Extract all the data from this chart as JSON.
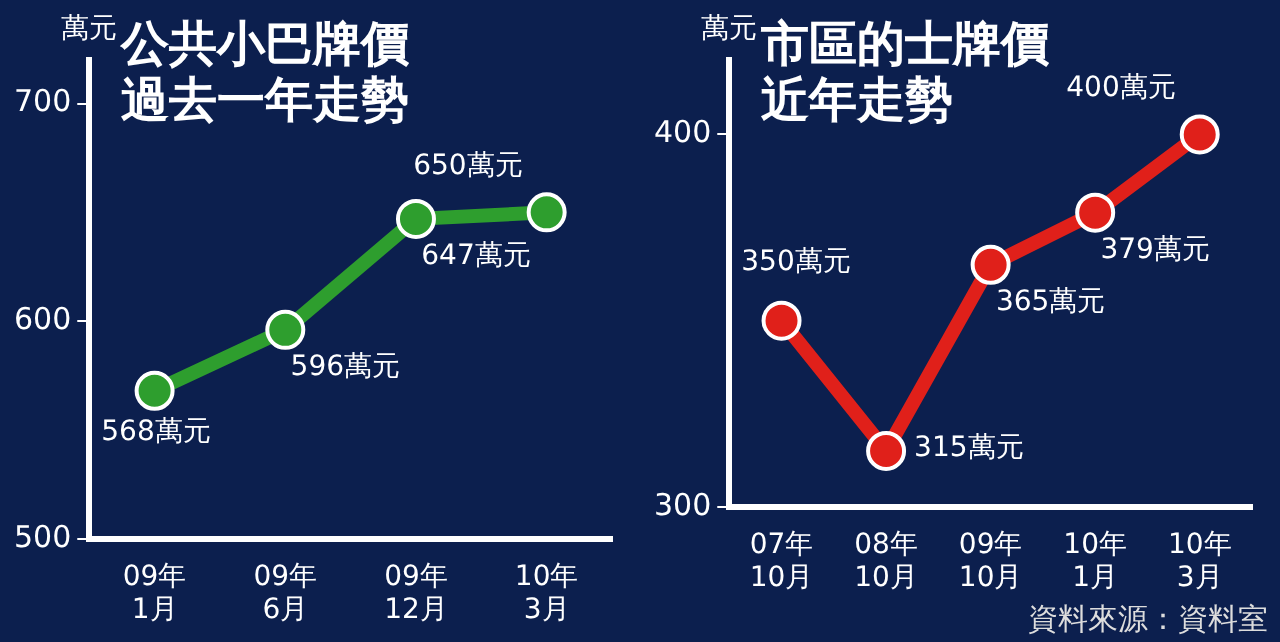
{
  "chart_data": [
    {
      "type": "line",
      "title": "公共小巴牌價過去一年走勢",
      "ylabel": "萬元",
      "categories": [
        "09年\n1月",
        "09年\n6月",
        "09年\n12月",
        "10年\n3月"
      ],
      "series": [
        {
          "color": "#2e9e2e",
          "values": [
            568,
            596,
            647,
            650
          ],
          "value_labels": [
            "568萬元",
            "596萬元",
            "647萬元",
            "650萬元"
          ]
        }
      ],
      "ylim": [
        500,
        720
      ],
      "yticks": [
        500,
        600,
        700
      ],
      "grid": false,
      "legend": false,
      "marker": "circle",
      "line_style": "solid"
    },
    {
      "type": "line",
      "title": "市區的士牌價近年走勢",
      "ylabel": "萬元",
      "categories": [
        "07年\n10月",
        "08年\n10月",
        "09年\n10月",
        "10年\n1月",
        "10年\n3月"
      ],
      "series": [
        {
          "color": "#e0201a",
          "values": [
            350,
            315,
            365,
            379,
            400
          ],
          "value_labels": [
            "350萬元",
            "315萬元",
            "365萬元",
            "379萬元",
            "400萬元"
          ]
        }
      ],
      "ylim": [
        300,
        420
      ],
      "yticks": [
        300,
        400
      ],
      "grid": false,
      "legend": false,
      "marker": "circle",
      "line_style": "solid",
      "annotations": [
        "資料來源：資料室"
      ]
    }
  ]
}
